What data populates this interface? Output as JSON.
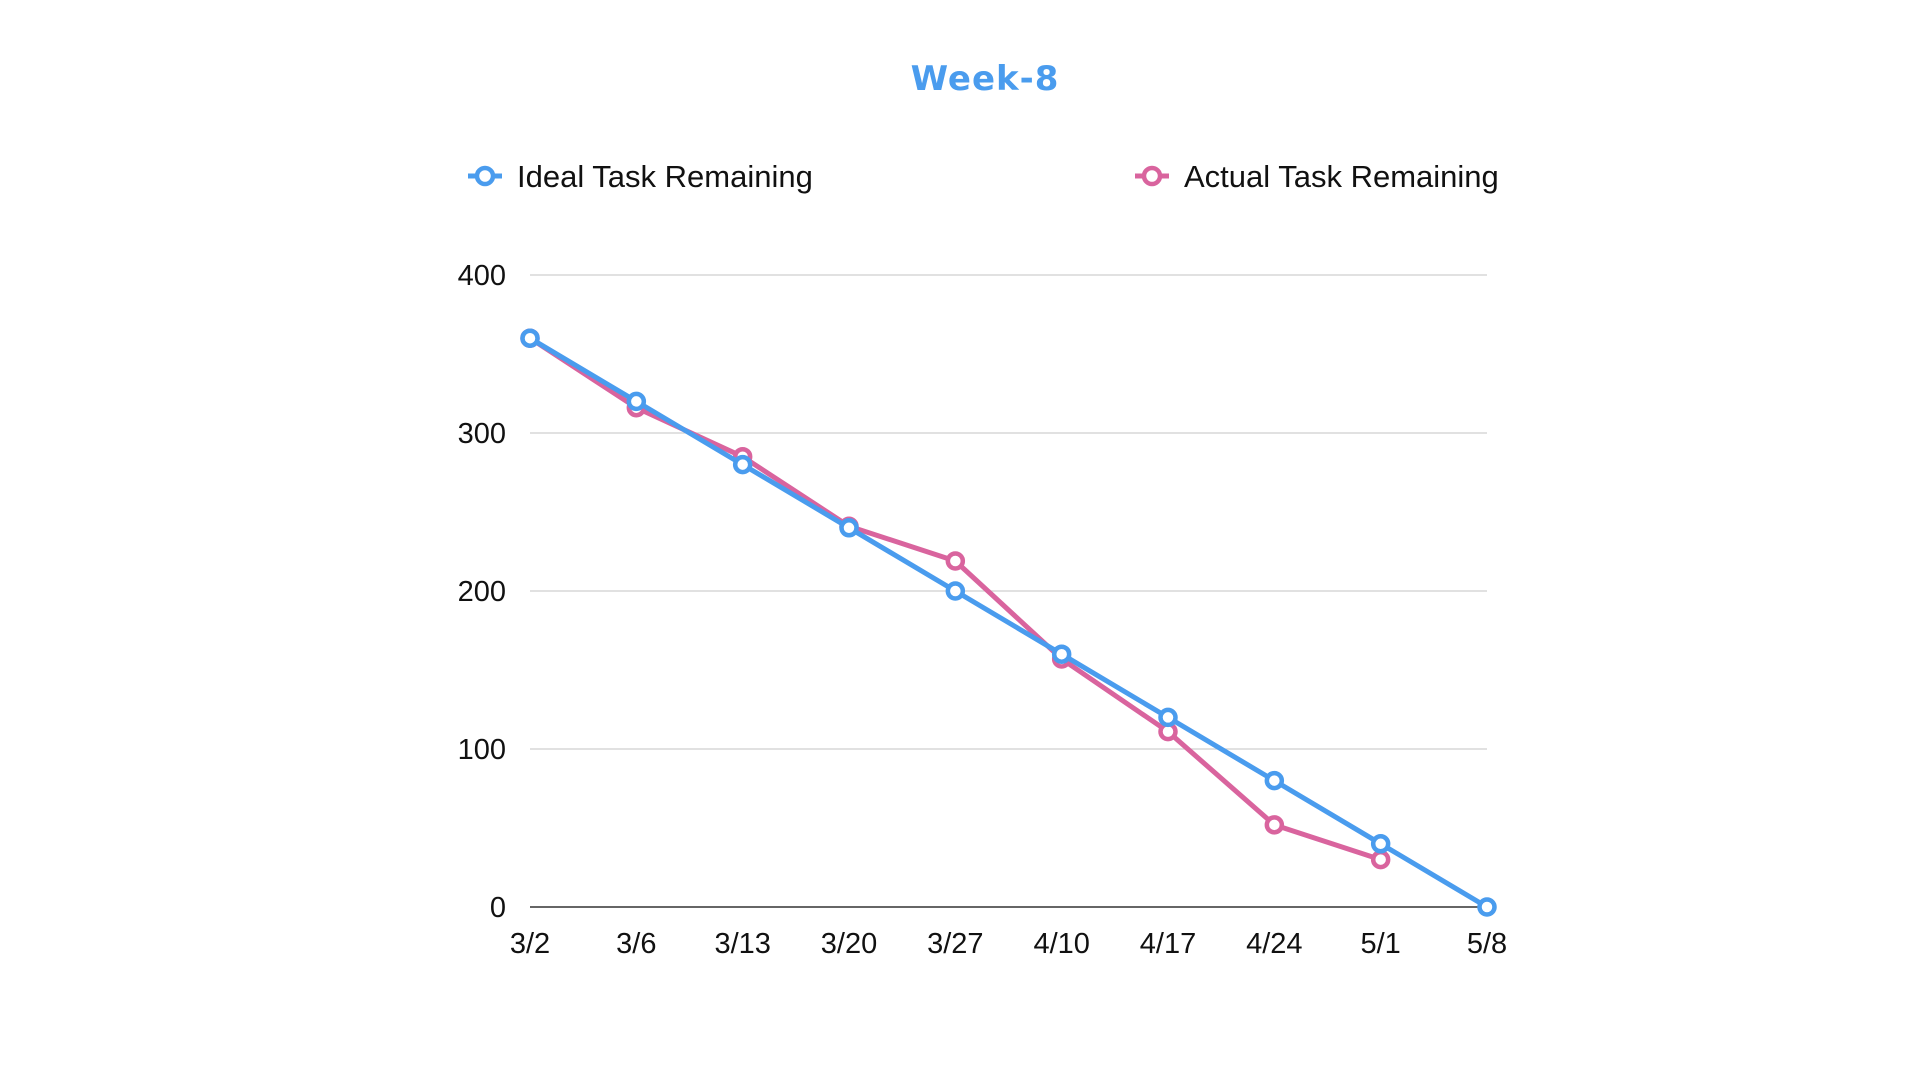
{
  "chart_data": {
    "type": "line",
    "title": "Week-8",
    "title_color": "#4a9cee",
    "xlabel": "",
    "ylabel": "",
    "categories": [
      "3/2",
      "3/6",
      "3/13",
      "3/20",
      "3/27",
      "4/10",
      "4/17",
      "4/24",
      "5/1",
      "5/8"
    ],
    "ylim": [
      0,
      400
    ],
    "yticks": [
      0,
      100,
      200,
      300,
      400
    ],
    "grid": true,
    "legend_position": "top",
    "series": [
      {
        "name": "Ideal Task Remaining",
        "color": "#4a9cee",
        "values": [
          360,
          320,
          280,
          240,
          200,
          160,
          120,
          80,
          40,
          0
        ]
      },
      {
        "name": "Actual Task Remaining",
        "color": "#d9649e",
        "values": [
          360,
          316,
          285,
          241,
          219,
          157,
          111,
          52,
          30,
          null
        ]
      }
    ]
  }
}
